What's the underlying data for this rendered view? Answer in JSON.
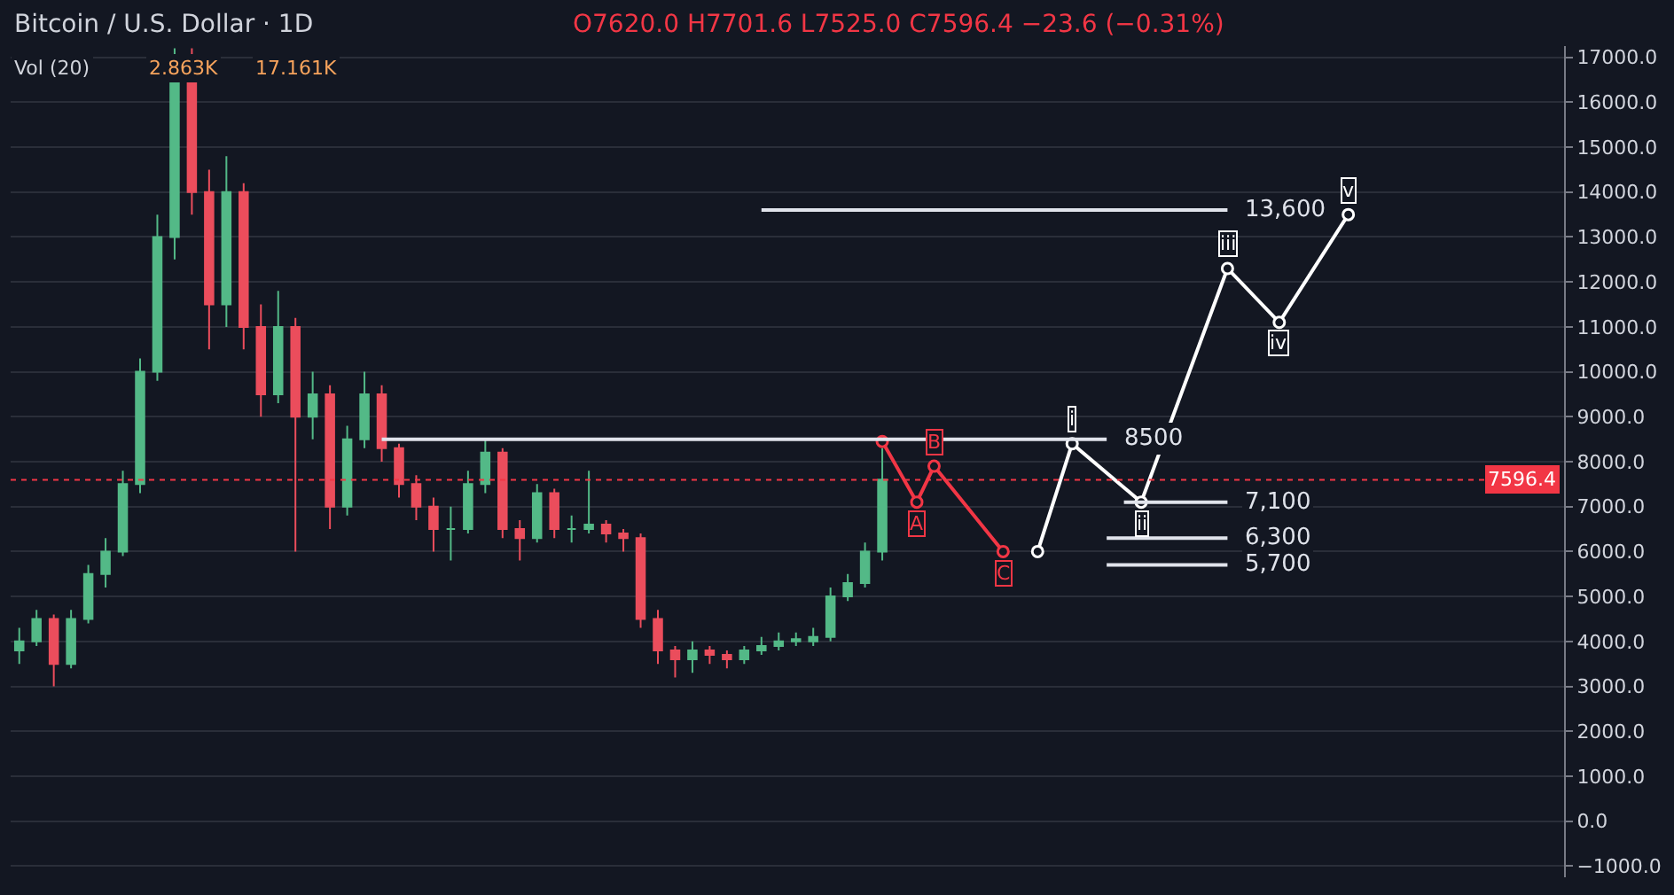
{
  "chart_data": {
    "type": "candlestick",
    "title": "Bitcoin / U.S. Dollar · 1D",
    "subtitle": "O7620.0 H7701.6 L7525.0 C7596.4 −23.6 (−0.31%)",
    "annotations": [
      "Vol (20)",
      "2.863K",
      "17.161K"
    ],
    "categories": [
      null,
      null,
      null,
      null,
      null,
      null,
      null,
      null,
      null,
      null,
      null,
      null,
      null,
      null,
      null,
      null,
      null,
      null,
      null,
      null,
      null,
      null,
      null,
      null,
      null,
      null,
      null,
      null,
      null,
      null,
      null,
      null,
      null,
      null,
      null,
      null,
      null,
      null,
      null,
      null,
      null,
      null,
      null,
      null,
      null,
      null,
      null,
      null,
      null,
      null,
      null,
      null,
      null,
      null,
      null,
      null,
      null,
      null,
      null,
      null,
      null,
      null,
      null,
      null,
      null,
      null,
      null,
      null,
      null,
      null,
      null,
      null,
      null,
      null,
      null,
      null,
      null,
      null,
      null,
      null,
      null,
      null,
      null,
      null,
      null,
      null,
      null,
      null,
      null,
      null
    ],
    "series": [
      {
        "color": "#53b987",
        "ohlc": [
          [
            3800,
            4300,
            3500,
            4000
          ],
          [
            4000,
            4700,
            3900,
            4500
          ],
          null,
          [
            3500,
            4700,
            3400,
            4500
          ],
          [
            4500,
            5700,
            4400,
            5500
          ],
          [
            5500,
            6300,
            5200,
            6000
          ],
          [
            6000,
            7800,
            5900,
            7500
          ],
          [
            7500,
            10300,
            7300,
            10000
          ],
          [
            10000,
            13500,
            9800,
            13000
          ],
          [
            13000,
            17200,
            12500,
            16500
          ],
          null,
          null,
          [
            11500,
            14800,
            11000,
            14000
          ],
          null,
          null,
          [
            9500,
            11800,
            9300,
            11000
          ],
          null,
          [
            9000,
            10000,
            8500,
            9500
          ],
          null,
          [
            7000,
            8800,
            6800,
            8500
          ],
          [
            8500,
            10000,
            8300,
            9500
          ],
          null,
          null,
          null,
          null,
          [
            6500,
            7000,
            5800,
            6500
          ],
          [
            6500,
            7800,
            6400,
            7500
          ],
          [
            7500,
            8500,
            7300,
            8200
          ],
          null,
          null,
          [
            6300,
            7500,
            6200,
            7300
          ],
          null,
          [
            6500,
            6800,
            6200,
            6500
          ],
          [
            6500,
            7800,
            6400,
            6600
          ],
          null,
          null,
          null,
          null,
          null,
          [
            3600,
            4000,
            3300,
            3800
          ],
          null,
          null,
          [
            3600,
            3900,
            3500,
            3800
          ],
          [
            3800,
            4100,
            3700,
            3900
          ],
          [
            3900,
            4200,
            3800,
            4000
          ],
          [
            4000,
            4200,
            3900,
            4050
          ],
          [
            4000,
            4300,
            3900,
            4100
          ],
          [
            4100,
            5200,
            4000,
            5000
          ],
          [
            5000,
            5500,
            4900,
            5300
          ],
          [
            5300,
            6200,
            5200,
            6000
          ],
          [
            6000,
            8300,
            5800,
            7600
          ],
          null,
          null,
          null,
          null,
          null,
          null,
          null,
          null,
          null,
          null,
          null,
          null,
          null,
          null,
          null,
          null,
          null,
          null,
          null,
          null,
          null,
          null,
          null,
          null,
          null,
          null,
          null,
          null,
          null,
          null,
          null,
          null,
          null,
          null,
          null,
          null,
          null,
          null,
          null
        ]
      },
      {
        "color": "#eb4d5c",
        "ohlc": [
          null,
          null,
          [
            4500,
            4600,
            3000,
            3500
          ],
          null,
          null,
          null,
          null,
          null,
          null,
          null,
          [
            16500,
            17200,
            13500,
            14000
          ],
          [
            14000,
            14500,
            10500,
            11500
          ],
          null,
          [
            14000,
            14200,
            10500,
            11000
          ],
          [
            11000,
            11500,
            9000,
            9500
          ],
          null,
          [
            11000,
            11200,
            6000,
            9000
          ],
          null,
          [
            9500,
            9700,
            6500,
            7000
          ],
          null,
          null,
          [
            9500,
            9700,
            8000,
            8300
          ],
          [
            8300,
            8400,
            7200,
            7500
          ],
          [
            7500,
            7700,
            6700,
            7000
          ],
          [
            7000,
            7200,
            6000,
            6500
          ],
          null,
          null,
          null,
          [
            8200,
            8300,
            6300,
            6500
          ],
          [
            6500,
            6700,
            5800,
            6300
          ],
          null,
          [
            7300,
            7400,
            6300,
            6500
          ],
          null,
          null,
          [
            6600,
            6700,
            6200,
            6400
          ],
          [
            6400,
            6500,
            6000,
            6300
          ],
          [
            6300,
            6400,
            4300,
            4500
          ],
          [
            4500,
            4700,
            3500,
            3800
          ],
          [
            3800,
            3900,
            3200,
            3600
          ],
          null,
          [
            3800,
            3900,
            3500,
            3700
          ],
          [
            3700,
            3800,
            3400,
            3600
          ],
          null,
          null,
          null,
          null,
          null,
          null,
          null,
          null,
          null,
          null,
          null,
          null,
          null,
          null,
          null,
          null,
          null,
          null,
          null,
          null,
          null,
          null,
          null,
          null,
          null,
          null,
          null,
          null,
          null,
          null,
          null,
          null,
          null,
          null,
          null,
          null,
          null,
          null,
          null,
          null,
          null,
          null,
          null,
          null,
          null,
          null,
          null,
          null
        ]
      },
      {
        "type": "line",
        "color": "#f23645",
        "marker": "circle",
        "values": [
          null,
          null,
          null,
          null,
          null,
          null,
          null,
          null,
          null,
          null,
          null,
          null,
          null,
          null,
          null,
          null,
          null,
          null,
          null,
          null,
          null,
          null,
          null,
          null,
          null,
          null,
          null,
          null,
          null,
          null,
          null,
          null,
          null,
          null,
          null,
          null,
          null,
          null,
          null,
          null,
          null,
          null,
          null,
          null,
          null,
          null,
          null,
          null,
          null,
          null,
          8450,
          null,
          7100,
          7900,
          null,
          null,
          null,
          6000,
          null,
          null,
          null,
          null,
          null,
          null,
          null,
          null,
          null,
          null,
          null,
          null,
          null,
          null,
          null,
          null,
          null,
          null,
          null,
          null,
          null,
          null,
          null,
          null,
          null,
          null,
          null,
          null,
          null,
          null,
          null,
          null
        ],
        "value_labels": [
          null,
          null,
          null,
          null,
          null,
          null,
          null,
          null,
          null,
          null,
          null,
          null,
          null,
          null,
          null,
          null,
          null,
          null,
          null,
          null,
          null,
          null,
          null,
          null,
          null,
          null,
          null,
          null,
          null,
          null,
          null,
          null,
          null,
          null,
          null,
          null,
          null,
          null,
          null,
          null,
          null,
          null,
          null,
          null,
          null,
          null,
          null,
          null,
          null,
          null,
          null,
          null,
          "A",
          "B",
          null,
          null,
          null,
          "C",
          null,
          null,
          null,
          null,
          null,
          null,
          null,
          null,
          null,
          null,
          null,
          null,
          null,
          null,
          null,
          null,
          null,
          null,
          null,
          null,
          null,
          null,
          null,
          null,
          null,
          null,
          null,
          null,
          null,
          null,
          null,
          null
        ]
      },
      {
        "type": "line",
        "color": "#ffffff",
        "marker": "circle",
        "values": [
          null,
          null,
          null,
          null,
          null,
          null,
          null,
          null,
          null,
          null,
          null,
          null,
          null,
          null,
          null,
          null,
          null,
          null,
          null,
          null,
          null,
          null,
          null,
          null,
          null,
          null,
          null,
          null,
          null,
          null,
          null,
          null,
          null,
          null,
          null,
          null,
          null,
          null,
          null,
          null,
          null,
          null,
          null,
          null,
          null,
          null,
          null,
          null,
          null,
          null,
          null,
          null,
          null,
          null,
          null,
          null,
          null,
          null,
          null,
          6000,
          null,
          8400,
          null,
          null,
          null,
          7100,
          null,
          null,
          null,
          null,
          12300,
          null,
          null,
          11100,
          null,
          null,
          null,
          13500,
          null,
          null,
          null,
          null,
          null,
          null,
          null,
          null,
          null,
          null,
          null,
          null
        ],
        "value_labels": [
          null,
          null,
          null,
          null,
          null,
          null,
          null,
          null,
          null,
          null,
          null,
          null,
          null,
          null,
          null,
          null,
          null,
          null,
          null,
          null,
          null,
          null,
          null,
          null,
          null,
          null,
          null,
          null,
          null,
          null,
          null,
          null,
          null,
          null,
          null,
          null,
          null,
          null,
          null,
          null,
          null,
          null,
          null,
          null,
          null,
          null,
          null,
          null,
          null,
          null,
          null,
          null,
          null,
          null,
          null,
          null,
          null,
          null,
          null,
          null,
          null,
          "i",
          null,
          null,
          null,
          "ii",
          null,
          null,
          null,
          null,
          "iii",
          null,
          null,
          "iv",
          null,
          null,
          null,
          "v",
          null,
          null,
          null,
          null,
          null,
          null,
          null,
          null,
          null,
          null,
          null,
          null
        ]
      },
      {
        "type": "line",
        "name": "13,600",
        "color": "#e0e3eb",
        "values": [
          null,
          null,
          null,
          null,
          null,
          null,
          null,
          null,
          null,
          null,
          null,
          null,
          null,
          null,
          null,
          null,
          null,
          null,
          null,
          null,
          null,
          null,
          null,
          null,
          null,
          null,
          null,
          null,
          null,
          null,
          null,
          null,
          null,
          null,
          null,
          null,
          null,
          null,
          null,
          null,
          null,
          null,
          null,
          13600,
          13600,
          13600,
          13600,
          13600,
          13600,
          13600,
          13600,
          13600,
          13600,
          13600,
          13600,
          13600,
          13600,
          13600,
          13600,
          13600,
          13600,
          13600,
          13600,
          13600,
          13600,
          13600,
          13600,
          13600,
          13600,
          13600,
          13600,
          null,
          null,
          null,
          null,
          null,
          null,
          null,
          null,
          null,
          null,
          null,
          null,
          null,
          null,
          null,
          null,
          null,
          null,
          null
        ]
      },
      {
        "type": "line",
        "name": "8500",
        "color": "#e0e3eb",
        "values": [
          null,
          null,
          null,
          null,
          null,
          null,
          null,
          null,
          null,
          null,
          null,
          null,
          null,
          null,
          null,
          null,
          null,
          null,
          null,
          null,
          null,
          8500,
          8500,
          8500,
          8500,
          8500,
          8500,
          8500,
          8500,
          8500,
          8500,
          8500,
          8500,
          8500,
          8500,
          8500,
          8500,
          8500,
          8500,
          8500,
          8500,
          8500,
          8500,
          8500,
          8500,
          8500,
          8500,
          8500,
          8500,
          8500,
          8500,
          8500,
          8500,
          8500,
          8500,
          8500,
          8500,
          8500,
          8500,
          8500,
          8500,
          8500,
          8500,
          8500,
          null,
          null,
          null,
          null,
          null,
          null,
          null,
          null,
          null,
          null,
          null,
          null,
          null,
          null,
          null,
          null,
          null,
          null,
          null,
          null,
          null,
          null,
          null,
          null,
          null,
          null
        ]
      },
      {
        "type": "line",
        "name": "7,100",
        "color": "#e0e3eb",
        "values": [
          null,
          null,
          null,
          null,
          null,
          null,
          null,
          null,
          null,
          null,
          null,
          null,
          null,
          null,
          null,
          null,
          null,
          null,
          null,
          null,
          null,
          null,
          null,
          null,
          null,
          null,
          null,
          null,
          null,
          null,
          null,
          null,
          null,
          null,
          null,
          null,
          null,
          null,
          null,
          null,
          null,
          null,
          null,
          null,
          null,
          null,
          null,
          null,
          null,
          null,
          null,
          null,
          null,
          null,
          null,
          null,
          null,
          null,
          null,
          null,
          null,
          null,
          null,
          null,
          7100,
          7100,
          7100,
          7100,
          7100,
          7100,
          7100,
          null,
          null,
          null,
          null,
          null,
          null,
          null,
          null,
          null,
          null,
          null,
          null,
          null,
          null,
          null,
          null,
          null,
          null,
          null
        ]
      },
      {
        "type": "line",
        "name": "6,300",
        "color": "#e0e3eb",
        "values": [
          null,
          null,
          null,
          null,
          null,
          null,
          null,
          null,
          null,
          null,
          null,
          null,
          null,
          null,
          null,
          null,
          null,
          null,
          null,
          null,
          null,
          null,
          null,
          null,
          null,
          null,
          null,
          null,
          null,
          null,
          null,
          null,
          null,
          null,
          null,
          null,
          null,
          null,
          null,
          null,
          null,
          null,
          null,
          null,
          null,
          null,
          null,
          null,
          null,
          null,
          null,
          null,
          null,
          null,
          null,
          null,
          null,
          null,
          null,
          null,
          null,
          null,
          null,
          6300,
          6300,
          6300,
          6300,
          6300,
          6300,
          6300,
          6300,
          null,
          null,
          null,
          null,
          null,
          null,
          null,
          null,
          null,
          null,
          null,
          null,
          null,
          null,
          null,
          null,
          null,
          null,
          null
        ]
      },
      {
        "type": "line",
        "name": "5,700",
        "color": "#e0e3eb",
        "values": [
          null,
          null,
          null,
          null,
          null,
          null,
          null,
          null,
          null,
          null,
          null,
          null,
          null,
          null,
          null,
          null,
          null,
          null,
          null,
          null,
          null,
          null,
          null,
          null,
          null,
          null,
          null,
          null,
          null,
          null,
          null,
          null,
          null,
          null,
          null,
          null,
          null,
          null,
          null,
          null,
          null,
          null,
          null,
          null,
          null,
          null,
          null,
          null,
          null,
          null,
          null,
          null,
          null,
          null,
          null,
          null,
          null,
          null,
          null,
          null,
          null,
          null,
          null,
          5700,
          5700,
          5700,
          5700,
          5700,
          5700,
          5700,
          5700,
          null,
          null,
          null,
          null,
          null,
          null,
          null,
          null,
          null,
          null,
          null,
          null,
          null,
          null,
          null,
          null,
          null,
          null,
          null
        ]
      }
    ],
    "ref_lines": [
      {
        "axis": "y",
        "value": 7596.4,
        "label": "7596.4",
        "color": "#f23645",
        "line_style": "dotted"
      }
    ],
    "ylim": [
      -1250,
      17250
    ],
    "yticks": [
      {
        "value": -1000,
        "label": "−1000.0"
      },
      {
        "value": 0,
        "label": "0.0"
      },
      {
        "value": 1000,
        "label": "1000.0"
      },
      {
        "value": 2000,
        "label": "2000.0"
      },
      {
        "value": 3000,
        "label": "3000.0"
      },
      {
        "value": 4000,
        "label": "4000.0"
      },
      {
        "value": 5000,
        "label": "5000.0"
      },
      {
        "value": 6000,
        "label": "6000.0"
      },
      {
        "value": 7000,
        "label": "7000.0"
      },
      {
        "value": 8000,
        "label": "8000.0"
      },
      {
        "value": 9000,
        "label": "9000.0"
      },
      {
        "value": 10000,
        "label": "10000.0"
      },
      {
        "value": 11000,
        "label": "11000.0"
      },
      {
        "value": 12000,
        "label": "12000.0"
      },
      {
        "value": 13000,
        "label": "13000.0"
      },
      {
        "value": 14000,
        "label": "14000.0"
      },
      {
        "value": 15000,
        "label": "15000.0"
      },
      {
        "value": 16000,
        "label": "16000.0"
      },
      {
        "value": 17000,
        "label": "17000.0"
      }
    ],
    "tick_labels": "y",
    "grid": "y",
    "marker": "none",
    "line_style": "solid"
  }
}
